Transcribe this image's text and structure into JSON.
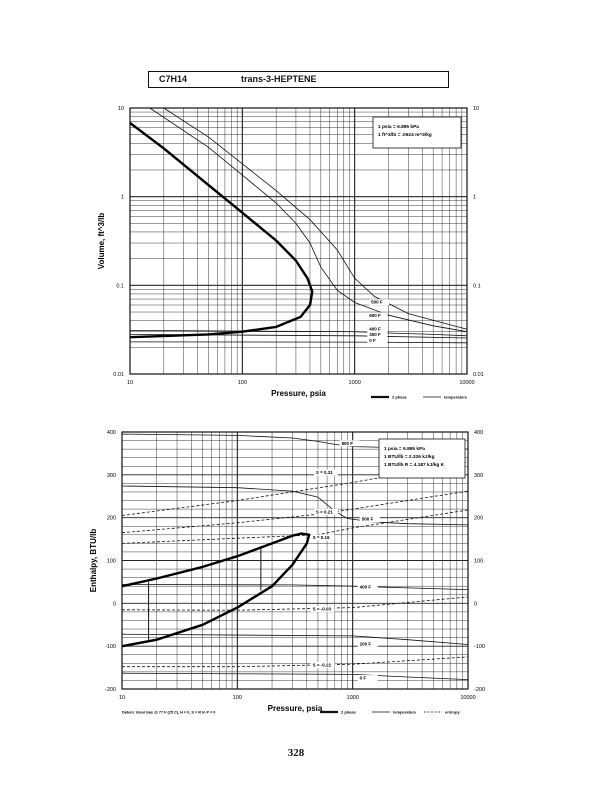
{
  "header": {
    "formula": "C7H14",
    "name": "trans-3-HEPTENE"
  },
  "page_number": "328",
  "chart_data": [
    {
      "type": "line",
      "xscale": "log",
      "yscale": "log",
      "xlabel": "Pressure,  psia",
      "ylabel": "Volume,  ft^3/lb",
      "xlim": [
        10,
        10000
      ],
      "ylim": [
        0.01,
        10
      ],
      "x_ticks": [
        "10",
        "100",
        "1000",
        "10000"
      ],
      "y_ticks": [
        "0.01",
        "0.1",
        "1",
        "10"
      ],
      "y_ticks_right": [
        "0.01",
        "0.1",
        "1",
        "10"
      ],
      "grid": true,
      "conversion_note": [
        "1 psia = 6.895 kPa",
        "1 ft^3/lb = .0624 m^3/kg"
      ],
      "legend": [
        "2 phase",
        "temperature"
      ],
      "isotherm_labels": [
        {
          "text": "500 F",
          "x": 1400,
          "y": 0.062
        },
        {
          "text": "600 F",
          "x": 1350,
          "y": 0.044
        },
        {
          "text": "400 F",
          "x": 1350,
          "y": 0.031
        },
        {
          "text": "300 F",
          "x": 1350,
          "y": 0.027
        },
        {
          "text": "0 F",
          "x": 1350,
          "y": 0.023
        }
      ],
      "saturation_dome": [
        [
          10,
          6.8
        ],
        [
          20,
          3.5
        ],
        [
          50,
          1.35
        ],
        [
          100,
          0.66
        ],
        [
          200,
          0.32
        ],
        [
          300,
          0.19
        ],
        [
          380,
          0.12
        ],
        [
          420,
          0.085
        ],
        [
          400,
          0.06
        ],
        [
          330,
          0.044
        ],
        [
          200,
          0.034
        ],
        [
          100,
          0.03
        ],
        [
          50,
          0.028
        ],
        [
          10,
          0.026
        ]
      ],
      "isotherms": [
        {
          "label": "600 F",
          "points": [
            [
              20,
              10
            ],
            [
              50,
              4.7
            ],
            [
              100,
              2.35
            ],
            [
              200,
              1.17
            ],
            [
              400,
              0.55
            ],
            [
              700,
              0.25
            ],
            [
              1000,
              0.12
            ],
            [
              1500,
              0.075
            ],
            [
              3000,
              0.048
            ],
            [
              10000,
              0.032
            ]
          ]
        },
        {
          "label": "500 F",
          "points": [
            [
              15,
              10
            ],
            [
              50,
              3.6
            ],
            [
              100,
              1.75
            ],
            [
              200,
              0.85
            ],
            [
              300,
              0.5
            ],
            [
              400,
              0.3
            ],
            [
              500,
              0.16
            ],
            [
              700,
              0.088
            ],
            [
              1000,
              0.064
            ],
            [
              2000,
              0.046
            ],
            [
              5000,
              0.035
            ],
            [
              10000,
              0.03
            ]
          ]
        },
        {
          "label": "400 F",
          "points": [
            [
              10,
              0.031
            ],
            [
              1000,
              0.03
            ],
            [
              2000,
              0.029
            ],
            [
              5000,
              0.028
            ],
            [
              10000,
              0.027
            ]
          ]
        },
        {
          "label": "300 F",
          "points": [
            [
              10,
              0.028
            ],
            [
              1000,
              0.027
            ],
            [
              10000,
              0.0255
            ]
          ]
        },
        {
          "label": "0 F",
          "points": [
            [
              10,
              0.023
            ],
            [
              1000,
              0.0229
            ],
            [
              10000,
              0.0225
            ]
          ]
        }
      ]
    },
    {
      "type": "line",
      "xscale": "log",
      "yscale": "linear",
      "xlabel": "Pressure,  psia",
      "ylabel": "Enthalpy,  BTU/lb",
      "xlim": [
        10,
        10000
      ],
      "ylim": [
        -200,
        400
      ],
      "x_ticks": [
        "10",
        "100",
        "1000",
        "10000"
      ],
      "y_ticks": [
        "-200",
        "-100",
        "0",
        "100",
        "200",
        "300",
        "400"
      ],
      "y_ticks_right": [
        "-200",
        "-100",
        "0",
        "100",
        "200",
        "300",
        "400"
      ],
      "grid": true,
      "conversion_note": [
        "1 psia = 6.895 kPa",
        "1 BTU/lb = 2.326 kJ/kg",
        "1 BTU/lb R = 4.187 kJ/kg K"
      ],
      "legend": [
        "2 phase",
        "temperature",
        "entropy"
      ],
      "datum_note": "Datum: Ideal Gas @ 77 F (25 C),  H = 0,  S = R ln P = 0",
      "isotherm_labels": [
        {
          "text": "800 F",
          "x": 800,
          "y": 370
        },
        {
          "text": "500 F",
          "x": 1200,
          "y": 193
        },
        {
          "text": "400 F",
          "x": 1150,
          "y": 35
        },
        {
          "text": "200 F",
          "x": 1150,
          "y": -98
        },
        {
          "text": "0 F",
          "x": 1150,
          "y": -178
        }
      ],
      "entropy_labels": [
        {
          "text": "S = 0.31",
          "x": 480,
          "y": 302
        },
        {
          "text": "S = 0.21",
          "x": 480,
          "y": 210
        },
        {
          "text": "S = 0.16",
          "x": 450,
          "y": 150
        },
        {
          "text": "S = -0.03",
          "x": 450,
          "y": -17
        },
        {
          "text": "S = -0.22",
          "x": 450,
          "y": -148
        }
      ],
      "saturation_dome": [
        [
          10,
          40
        ],
        [
          20,
          58
        ],
        [
          50,
          85
        ],
        [
          100,
          110
        ],
        [
          200,
          140
        ],
        [
          300,
          158
        ],
        [
          360,
          163
        ],
        [
          420,
          160
        ],
        [
          400,
          140
        ],
        [
          300,
          90
        ],
        [
          200,
          40
        ],
        [
          100,
          -10
        ],
        [
          50,
          -50
        ],
        [
          20,
          -85
        ],
        [
          10,
          -100
        ]
      ],
      "tie_lines": [
        {
          "x": 17,
          "y": [
            -90,
            50
          ]
        },
        {
          "x": 160,
          "y": [
            30,
            130
          ]
        }
      ],
      "isotherms": [
        {
          "label": "800 F",
          "points": [
            [
              10,
              395
            ],
            [
              100,
              392
            ],
            [
              300,
              386
            ],
            [
              500,
              378
            ],
            [
              700,
              371
            ],
            [
              1000,
              366
            ],
            [
              3000,
              363
            ],
            [
              10000,
              360
            ]
          ]
        },
        {
          "label": "500 F",
          "points": [
            [
              10,
              274
            ],
            [
              100,
              270
            ],
            [
              300,
              262
            ],
            [
              500,
              248
            ],
            [
              700,
              215
            ],
            [
              900,
              198
            ],
            [
              1500,
              190
            ],
            [
              3000,
              186
            ],
            [
              10000,
              183
            ]
          ]
        },
        {
          "label": "400 F",
          "points": [
            [
              10,
              44
            ],
            [
              300,
              43
            ],
            [
              1000,
              40
            ],
            [
              3000,
              36
            ],
            [
              10000,
              32
            ]
          ]
        },
        {
          "label": "200 F",
          "points": [
            [
              10,
              -72
            ],
            [
              1000,
              -76
            ],
            [
              3000,
              -85
            ],
            [
              10000,
              -96
            ]
          ]
        },
        {
          "label": "0 F",
          "points": [
            [
              10,
              -163
            ],
            [
              1000,
              -166
            ],
            [
              3000,
              -172
            ],
            [
              10000,
              -178
            ]
          ]
        }
      ],
      "entropy_lines": [
        {
          "label": "S = 0.31",
          "points": [
            [
              10,
              205
            ],
            [
              100,
              240
            ],
            [
              1000,
              282
            ],
            [
              10000,
              330
            ]
          ]
        },
        {
          "label": "S = 0.21",
          "points": [
            [
              10,
              165
            ],
            [
              100,
              188
            ],
            [
              500,
              208
            ],
            [
              1000,
              220
            ],
            [
              10000,
              262
            ]
          ]
        },
        {
          "label": "S = 0.16",
          "points": [
            [
              10,
              140
            ],
            [
              100,
              152
            ],
            [
              500,
              160
            ],
            [
              1000,
              176
            ],
            [
              10000,
              218
            ]
          ]
        },
        {
          "label": "S = -0.03",
          "points": [
            [
              10,
              -15
            ],
            [
              100,
              -16
            ],
            [
              1000,
              -10
            ],
            [
              10000,
              15
            ]
          ]
        },
        {
          "label": "S = -0.22",
          "points": [
            [
              10,
              -148
            ],
            [
              100,
              -148
            ],
            [
              1000,
              -142
            ],
            [
              10000,
              -125
            ]
          ]
        }
      ]
    }
  ]
}
